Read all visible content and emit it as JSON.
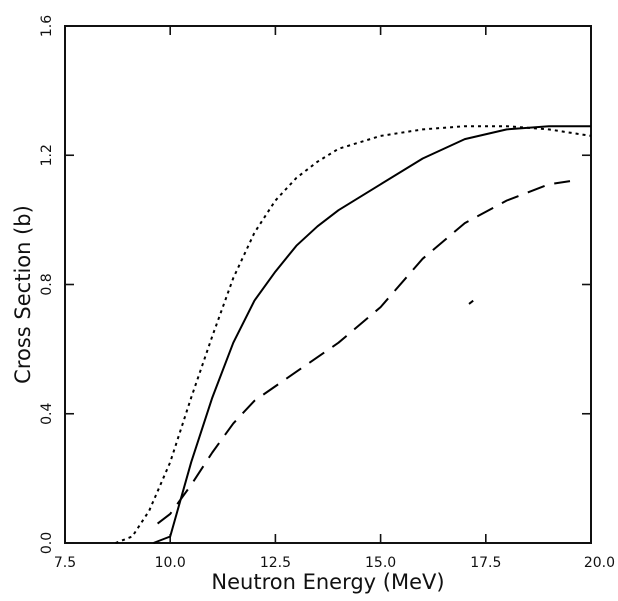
{
  "chart_data": {
    "type": "line",
    "title": "",
    "xlabel": "Neutron Energy (MeV)",
    "ylabel": "Cross Section (b)",
    "xlim": [
      7.5,
      20.0
    ],
    "ylim": [
      0.0,
      1.6
    ],
    "x_ticks": [
      7.5,
      10.0,
      12.5,
      15.0,
      17.5,
      20.0
    ],
    "x_tick_labels": [
      "7.5",
      "10.0",
      "12.5",
      "15.0",
      "17.5",
      "20.0"
    ],
    "y_ticks": [
      0.0,
      0.4,
      0.8,
      1.2,
      1.6
    ],
    "y_tick_labels": [
      "0.0",
      "0.4",
      "0.8",
      "1.2",
      "1.6"
    ],
    "grid": false,
    "legend": "none",
    "series": [
      {
        "style": "solid",
        "color": "#000000",
        "points": [
          [
            9.6,
            0.0
          ],
          [
            10.0,
            0.02
          ],
          [
            10.5,
            0.25
          ],
          [
            11.0,
            0.45
          ],
          [
            11.5,
            0.62
          ],
          [
            12.0,
            0.75
          ],
          [
            12.5,
            0.84
          ],
          [
            13.0,
            0.92
          ],
          [
            13.5,
            0.98
          ],
          [
            14.0,
            1.03
          ],
          [
            15.0,
            1.11
          ],
          [
            16.0,
            1.19
          ],
          [
            17.0,
            1.25
          ],
          [
            18.0,
            1.28
          ],
          [
            19.0,
            1.29
          ],
          [
            20.0,
            1.29
          ]
        ]
      },
      {
        "style": "dotted",
        "color": "#000000",
        "points": [
          [
            8.7,
            0.0
          ],
          [
            9.1,
            0.02
          ],
          [
            9.5,
            0.1
          ],
          [
            10.0,
            0.25
          ],
          [
            10.5,
            0.45
          ],
          [
            11.0,
            0.64
          ],
          [
            11.5,
            0.82
          ],
          [
            12.0,
            0.96
          ],
          [
            12.5,
            1.06
          ],
          [
            13.0,
            1.13
          ],
          [
            13.5,
            1.18
          ],
          [
            14.0,
            1.22
          ],
          [
            15.0,
            1.26
          ],
          [
            16.0,
            1.28
          ],
          [
            17.0,
            1.29
          ],
          [
            18.0,
            1.29
          ],
          [
            19.0,
            1.28
          ],
          [
            20.0,
            1.26
          ]
        ]
      },
      {
        "style": "dashed",
        "color": "#000000",
        "points": [
          [
            9.7,
            0.06
          ],
          [
            10.0,
            0.09
          ],
          [
            10.5,
            0.18
          ],
          [
            11.0,
            0.28
          ],
          [
            11.5,
            0.37
          ],
          [
            12.0,
            0.44
          ],
          [
            13.0,
            0.53
          ],
          [
            14.0,
            0.62
          ],
          [
            15.0,
            0.73
          ],
          [
            16.0,
            0.88
          ],
          [
            17.0,
            0.99
          ],
          [
            18.0,
            1.06
          ],
          [
            19.0,
            1.11
          ],
          [
            19.5,
            1.12
          ]
        ]
      },
      {
        "style": "solid",
        "color": "#000000",
        "points": [
          [
            17.1,
            0.74
          ],
          [
            17.2,
            0.75
          ]
        ]
      }
    ]
  }
}
